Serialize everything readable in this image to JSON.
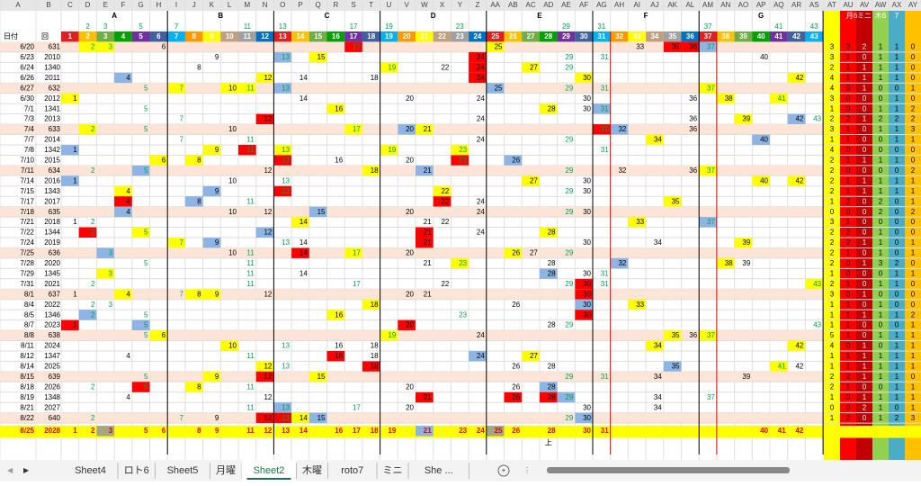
{
  "columns": [
    "A",
    "B",
    "C",
    "D",
    "E",
    "F",
    "G",
    "H",
    "I",
    "J",
    "K",
    "L",
    "M",
    "N",
    "O",
    "P",
    "Q",
    "R",
    "S",
    "T",
    "U",
    "V",
    "W",
    "X",
    "Y",
    "Z",
    "AA",
    "AB",
    "AC",
    "AD",
    "AE",
    "AF",
    "AG",
    "AH",
    "AI",
    "AJ",
    "AK",
    "AL",
    "AM",
    "AN",
    "AO",
    "AP",
    "AQ",
    "AR",
    "AS",
    "AT",
    "AU",
    "AV",
    "AW",
    "AX",
    "AY"
  ],
  "groups": [
    "A",
    "B",
    "C",
    "D",
    "E",
    "F",
    "G"
  ],
  "primes": [
    2,
    3,
    5,
    7,
    11,
    13,
    17,
    19,
    23,
    29,
    31,
    37,
    41,
    43
  ],
  "summary_headers": [
    "月6",
    "ミニ",
    "木6",
    "7"
  ],
  "header_labels": {
    "date": "日付",
    "kai": "回"
  },
  "numbers": [
    1,
    2,
    3,
    4,
    5,
    6,
    7,
    8,
    9,
    10,
    11,
    12,
    13,
    14,
    15,
    16,
    17,
    18,
    19,
    20,
    21,
    22,
    23,
    24,
    25,
    26,
    27,
    28,
    29,
    30,
    31,
    32,
    33,
    34,
    35,
    36,
    37,
    38,
    39,
    40,
    41,
    42,
    43
  ],
  "header_palette": [
    "#e02020",
    "#ffc000",
    "#70ad47",
    "#00a000",
    "#7030a0",
    "#4060a0",
    "#00b0f0",
    "#ff9900",
    "#ffff00",
    "#c0a080",
    "#a0a0a0",
    "#0070c0"
  ],
  "highlight": {
    "y": "#ffff00",
    "r": "#ff0000",
    "b": "#8db4e2",
    "g": "#a6a682"
  },
  "rows": [
    {
      "date": "6/20",
      "kai": 631,
      "cells": [
        [
          2,
          "y"
        ],
        [
          3,
          "y"
        ],
        [
          6
        ],
        [
          17,
          "r"
        ],
        [
          25,
          "y"
        ],
        [
          33
        ],
        [
          35,
          "r"
        ],
        [
          36,
          "r"
        ],
        [
          37,
          "b"
        ]
      ],
      "sum": [
        3,
        3,
        2,
        1,
        1,
        0
      ]
    },
    {
      "date": "6/23",
      "kai": 2010,
      "cells": [
        [
          9
        ],
        [
          13,
          "b"
        ],
        [
          15,
          "y"
        ],
        [
          24,
          "r"
        ],
        [
          29
        ],
        [
          31
        ],
        [
          40
        ]
      ],
      "sum": [
        3,
        1,
        0,
        1,
        1,
        0
      ]
    },
    {
      "date": "6/24",
      "kai": 1340,
      "cells": [
        [
          8
        ],
        [
          19,
          "y"
        ],
        [
          22
        ],
        [
          24,
          "r"
        ],
        [
          27,
          "y"
        ],
        [
          29
        ]
      ],
      "sum": [
        2,
        1,
        1,
        1,
        1,
        0
      ]
    },
    {
      "date": "6/26",
      "kai": 2011,
      "cells": [
        [
          4,
          "b"
        ],
        [
          12,
          "y"
        ],
        [
          14
        ],
        [
          18
        ],
        [
          24,
          "r"
        ],
        [
          30,
          "y"
        ],
        [
          42,
          "y"
        ]
      ],
      "sum": [
        4,
        1,
        1,
        1,
        1,
        0
      ]
    },
    {
      "date": "6/27",
      "kai": 632,
      "cells": [
        [
          5
        ],
        [
          7,
          "y"
        ],
        [
          10,
          "y"
        ],
        [
          11,
          "y"
        ],
        [
          13,
          "b"
        ],
        [
          25,
          "b"
        ],
        [
          29
        ],
        [
          31
        ],
        [
          37,
          "y"
        ]
      ],
      "sum": [
        4,
        0,
        1,
        0,
        0,
        1
      ]
    },
    {
      "date": "6/30",
      "kai": 2012,
      "cells": [
        [
          1,
          "y"
        ],
        [
          14
        ],
        [
          20
        ],
        [
          24
        ],
        [
          30
        ],
        [
          36
        ],
        [
          38,
          "y"
        ],
        [
          41,
          "y"
        ]
      ],
      "sum": [
        3,
        0,
        0,
        0,
        1,
        0
      ]
    },
    {
      "date": "7/1",
      "kai": 1341,
      "cells": [
        [
          5
        ],
        [
          16,
          "y"
        ],
        [
          28,
          "y"
        ],
        [
          30
        ],
        [
          31,
          "b"
        ]
      ],
      "sum": [
        1,
        0,
        0,
        1,
        1,
        2
      ]
    },
    {
      "date": "7/3",
      "kai": 2013,
      "cells": [
        [
          7
        ],
        [
          12,
          "r"
        ],
        [
          24
        ],
        [
          36
        ],
        [
          39,
          "y"
        ],
        [
          42,
          "b"
        ],
        [
          43
        ]
      ],
      "sum": [
        2,
        2,
        1,
        2,
        2,
        2
      ]
    },
    {
      "date": "7/4",
      "kai": 633,
      "cells": [
        [
          2,
          "y"
        ],
        [
          5
        ],
        [
          10
        ],
        [
          17,
          "y"
        ],
        [
          20,
          "b"
        ],
        [
          21,
          "y"
        ],
        [
          31,
          "r"
        ],
        [
          32,
          "b"
        ],
        [
          36
        ]
      ],
      "sum": [
        3,
        1,
        0,
        1,
        1,
        3
      ]
    },
    {
      "date": "7/7",
      "kai": 2014,
      "cells": [
        [
          7
        ],
        [
          11
        ],
        [
          24
        ],
        [
          29
        ],
        [
          34,
          "y"
        ],
        [
          40,
          "b"
        ]
      ],
      "sum": [
        1,
        1,
        0,
        0,
        1,
        1
      ]
    },
    {
      "date": "7/8",
      "kai": 1342,
      "cells": [
        [
          1,
          "b"
        ],
        [
          9,
          "y"
        ],
        [
          11,
          "r"
        ],
        [
          13,
          "y"
        ],
        [
          19,
          "y"
        ],
        [
          23,
          "y"
        ],
        [
          31
        ]
      ],
      "sum": [
        4,
        0,
        0,
        0,
        0,
        0
      ]
    },
    {
      "date": "7/10",
      "kai": 2015,
      "cells": [
        [
          6,
          "y"
        ],
        [
          8,
          "y"
        ],
        [
          13,
          "r"
        ],
        [
          16
        ],
        [
          20
        ],
        [
          23,
          "r"
        ],
        [
          26,
          "b"
        ]
      ],
      "sum": [
        2,
        1,
        1,
        1,
        1,
        0
      ]
    },
    {
      "date": "7/11",
      "kai": 634,
      "cells": [
        [
          2
        ],
        [
          5,
          "b"
        ],
        [
          12
        ],
        [
          18,
          "y"
        ],
        [
          21,
          "b"
        ],
        [
          29
        ],
        [
          32
        ],
        [
          36
        ],
        [
          37,
          "y"
        ]
      ],
      "sum": [
        2,
        0,
        0,
        0,
        0,
        2
      ]
    },
    {
      "date": "7/14",
      "kai": 2016,
      "cells": [
        [
          1,
          "b"
        ],
        [
          10
        ],
        [
          13
        ],
        [
          27,
          "y"
        ],
        [
          30
        ],
        [
          40,
          "y"
        ],
        [
          42,
          "y"
        ]
      ],
      "sum": [
        2,
        1,
        1,
        1,
        1,
        1
      ]
    },
    {
      "date": "7/15",
      "kai": 1343,
      "cells": [
        [
          4,
          "y"
        ],
        [
          9,
          "b"
        ],
        [
          13,
          "r"
        ],
        [
          22,
          "y"
        ],
        [
          29
        ],
        [
          30
        ]
      ],
      "sum": [
        2,
        1,
        1,
        1,
        1,
        1
      ]
    },
    {
      "date": "7/17",
      "kai": 2017,
      "cells": [
        [
          4,
          "r"
        ],
        [
          8,
          "b"
        ],
        [
          11
        ],
        [
          22,
          "r"
        ],
        [
          24
        ],
        [
          35,
          "y"
        ]
      ],
      "sum": [
        1,
        2,
        0,
        2,
        0,
        1
      ]
    },
    {
      "date": "7/18",
      "kai": 635,
      "cells": [
        [
          4,
          "b"
        ],
        [
          10
        ],
        [
          12
        ],
        [
          15,
          "b"
        ],
        [
          20
        ],
        [
          24
        ],
        [
          29
        ],
        [
          30
        ]
      ],
      "sum": [
        0,
        0,
        0,
        2,
        0,
        2
      ]
    },
    {
      "date": "7/21",
      "kai": 2018,
      "cells": [
        [
          1
        ],
        [
          2
        ],
        [
          14,
          "y"
        ],
        [
          21
        ],
        [
          22
        ],
        [
          33,
          "y"
        ],
        [
          37,
          "b"
        ]
      ],
      "sum": [
        3,
        1,
        0,
        0,
        0,
        0
      ]
    },
    {
      "date": "7/22",
      "kai": 1344,
      "cells": [
        [
          2,
          "r"
        ],
        [
          5,
          "y"
        ],
        [
          12,
          "b"
        ],
        [
          21,
          "r"
        ],
        [
          24
        ],
        [
          28,
          "y"
        ]
      ],
      "sum": [
        2,
        2,
        0,
        1,
        0,
        0
      ]
    },
    {
      "date": "7/24",
      "kai": 2019,
      "cells": [
        [
          7,
          "y"
        ],
        [
          9,
          "b"
        ],
        [
          13
        ],
        [
          14
        ],
        [
          21,
          "r"
        ],
        [
          30
        ],
        [
          34
        ],
        [
          39,
          "y"
        ]
      ],
      "sum": [
        2,
        2,
        1,
        1,
        0,
        1
      ]
    },
    {
      "date": "7/25",
      "kai": 636,
      "cells": [
        [
          3,
          "b"
        ],
        [
          10
        ],
        [
          11
        ],
        [
          14,
          "r"
        ],
        [
          17,
          "y"
        ],
        [
          20
        ],
        [
          26,
          "y"
        ],
        [
          27
        ],
        [
          29
        ]
      ],
      "sum": [
        2,
        1,
        0,
        1,
        0,
        1
      ]
    },
    {
      "date": "7/28",
      "kai": 2020,
      "cells": [
        [
          5
        ],
        [
          11
        ],
        [
          21
        ],
        [
          23,
          "y"
        ],
        [
          28
        ],
        [
          32,
          "b"
        ],
        [
          38,
          "y"
        ],
        [
          39
        ]
      ],
      "sum": [
        2,
        0,
        1,
        3,
        2,
        0
      ]
    },
    {
      "date": "7/29",
      "kai": 1345,
      "cells": [
        [
          3,
          "y"
        ],
        [
          11
        ],
        [
          14
        ],
        [
          28,
          "b"
        ],
        [
          30
        ],
        [
          31
        ]
      ],
      "sum": [
        1,
        0,
        0,
        0,
        1,
        1
      ]
    },
    {
      "date": "7/31",
      "kai": 2021,
      "cells": [
        [
          2
        ],
        [
          11
        ],
        [
          17
        ],
        [
          22
        ],
        [
          29
        ],
        [
          30,
          "r"
        ],
        [
          31
        ],
        [
          43,
          "y"
        ]
      ],
      "sum": [
        2,
        1,
        0,
        1,
        1,
        0
      ]
    },
    {
      "date": "8/1",
      "kai": 637,
      "cells": [
        [
          1
        ],
        [
          4,
          "y"
        ],
        [
          7
        ],
        [
          8,
          "y"
        ],
        [
          9,
          "y"
        ],
        [
          12
        ],
        [
          20
        ],
        [
          21
        ],
        [
          30,
          "r"
        ]
      ],
      "sum": [
        3,
        0,
        1,
        0,
        0,
        0
      ]
    },
    {
      "date": "8/4",
      "kai": 2022,
      "cells": [
        [
          2
        ],
        [
          3
        ],
        [
          18,
          "y"
        ],
        [
          26
        ],
        [
          30,
          "b"
        ],
        [
          33,
          "y"
        ]
      ],
      "sum": [
        1,
        1,
        0,
        1,
        0,
        0
      ]
    },
    {
      "date": "8/5",
      "kai": 1346,
      "cells": [
        [
          2,
          "b"
        ],
        [
          5
        ],
        [
          16,
          "y"
        ],
        [
          23
        ],
        [
          30,
          "r"
        ]
      ],
      "sum": [
        1,
        1,
        1,
        1,
        1,
        2
      ]
    },
    {
      "date": "8/7",
      "kai": 2023,
      "cells": [
        [
          1,
          "r"
        ],
        [
          5,
          "b"
        ],
        [
          20,
          "r"
        ],
        [
          28
        ],
        [
          29
        ],
        [
          43
        ]
      ],
      "sum": [
        1,
        1,
        0,
        0,
        0,
        1
      ]
    },
    {
      "date": "8/8",
      "kai": 638,
      "cells": [
        [
          5
        ],
        [
          6,
          "y"
        ],
        [
          19,
          "y"
        ],
        [
          24
        ],
        [
          35,
          "y"
        ],
        [
          36
        ],
        [
          37,
          "y"
        ]
      ],
      "sum": [
        5,
        1,
        0,
        1,
        1,
        1
      ]
    },
    {
      "date": "8/11",
      "kai": 2024,
      "cells": [
        [
          10,
          "y"
        ],
        [
          13
        ],
        [
          16
        ],
        [
          18
        ],
        [
          34,
          "y"
        ],
        [
          42,
          "y"
        ]
      ],
      "sum": [
        4,
        0,
        1,
        0,
        1,
        1
      ]
    },
    {
      "date": "8/12",
      "kai": 1347,
      "cells": [
        [
          4
        ],
        [
          11
        ],
        [
          16,
          "r"
        ],
        [
          18
        ],
        [
          24,
          "b"
        ],
        [
          27,
          "y"
        ]
      ],
      "sum": [
        1,
        1,
        1,
        1,
        1,
        1
      ]
    },
    {
      "date": "8/14",
      "kai": 2025,
      "cells": [
        [
          12,
          "y"
        ],
        [
          13
        ],
        [
          18,
          "r"
        ],
        [
          26
        ],
        [
          28
        ],
        [
          35,
          "b"
        ],
        [
          41,
          "y"
        ],
        [
          42
        ]
      ],
      "sum": [
        1,
        1,
        1,
        1,
        1,
        1
      ]
    },
    {
      "date": "8/15",
      "kai": 639,
      "cells": [
        [
          5
        ],
        [
          9,
          "y"
        ],
        [
          12,
          "r"
        ],
        [
          15,
          "y"
        ],
        [
          29
        ],
        [
          31
        ],
        [
          34
        ],
        [
          39
        ]
      ],
      "sum": [
        2,
        2,
        1,
        1,
        1,
        0
      ]
    },
    {
      "date": "8/18",
      "kai": 2026,
      "cells": [
        [
          2
        ],
        [
          5,
          "r"
        ],
        [
          8,
          "y"
        ],
        [
          11
        ],
        [
          20
        ],
        [
          26
        ],
        [
          28,
          "b"
        ]
      ],
      "sum": [
        2,
        1,
        0,
        0,
        1,
        1
      ]
    },
    {
      "date": "8/19",
      "kai": 1348,
      "cells": [
        [
          4
        ],
        [
          12
        ],
        [
          21,
          "r"
        ],
        [
          26,
          "r"
        ],
        [
          28,
          "r"
        ],
        [
          29,
          "b"
        ],
        [
          34
        ],
        [
          37
        ]
      ],
      "sum": [
        1,
        0,
        1,
        1,
        1,
        1
      ]
    },
    {
      "date": "8/21",
      "kai": 2027,
      "cells": [
        [
          11
        ],
        [
          13,
          "b"
        ],
        [
          17
        ],
        [
          20
        ],
        [
          30
        ],
        [
          34
        ]
      ],
      "sum": [
        0,
        0,
        2,
        1,
        0,
        1
      ]
    },
    {
      "date": "8/22",
      "kai": 640,
      "cells": [
        [
          2
        ],
        [
          7
        ],
        [
          9
        ],
        [
          12,
          "r"
        ],
        [
          13,
          "r"
        ],
        [
          14,
          "y"
        ],
        [
          15,
          "b"
        ],
        [
          29
        ],
        [
          30,
          "b"
        ]
      ],
      "sum": [
        1,
        2,
        0,
        1,
        2,
        3
      ]
    }
  ],
  "last_row": {
    "date": "8/25",
    "kai": 2028,
    "cells": [
      [
        1
      ],
      [
        2
      ],
      [
        3,
        "g"
      ],
      [
        5
      ],
      [
        6
      ],
      [
        8
      ],
      [
        9
      ],
      [
        11
      ],
      [
        12
      ],
      [
        13
      ],
      [
        14
      ],
      [
        16
      ],
      [
        17
      ],
      [
        18
      ],
      [
        19
      ],
      [
        21,
        "b"
      ],
      [
        23
      ],
      [
        24
      ],
      [
        25,
        "g"
      ],
      [
        26
      ],
      [
        28
      ],
      [
        30
      ],
      [
        31
      ],
      [
        40
      ],
      [
        41
      ],
      [
        42
      ]
    ],
    "note": "上"
  },
  "tabs": [
    "Sheet4",
    "ロト6",
    "Sheet5",
    "月曜",
    "Sheet2",
    "木曜",
    "roto7",
    "ミニ",
    "She ..."
  ],
  "active_tab": 4
}
